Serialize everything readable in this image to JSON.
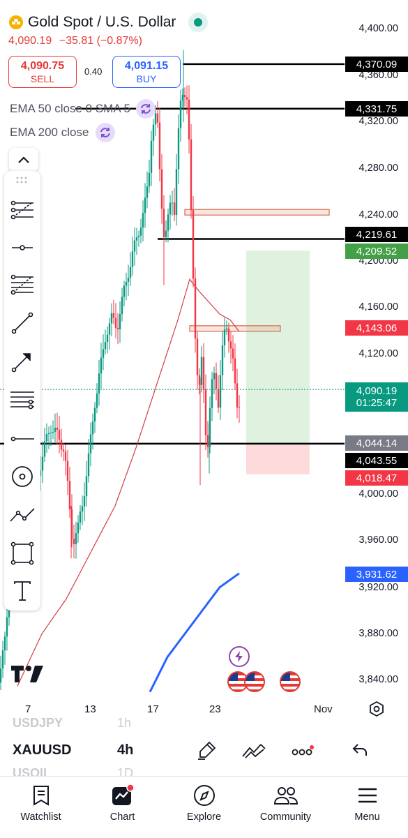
{
  "header": {
    "title": "Gold Spot / U.S. Dollar",
    "last_price": "4,090.19",
    "change": "−35.81",
    "change_pct": "(−0.87%)",
    "sell_price": "4,090.75",
    "sell_label": "SELL",
    "spread": "0.40",
    "buy_price": "4,091.15",
    "buy_label": "BUY"
  },
  "indicators": [
    {
      "label": "EMA 50 close 0 SMA 5"
    },
    {
      "label": "EMA 200 close"
    }
  ],
  "price_axis": {
    "ticks": [
      "4,400.00",
      "4,360.00",
      "4,320.00",
      "4,280.00",
      "4,240.00",
      "4,200.00",
      "4,160.00",
      "4,120.00",
      "4,000.00",
      "3,960.00",
      "3,920.00",
      "3,880.00",
      "3,840.00"
    ]
  },
  "date_axis": {
    "ticks": [
      "7",
      "13",
      "17",
      "23",
      "Nov"
    ]
  },
  "price_labels": {
    "resistance_1": "4,370.09",
    "resistance_2": "4,331.75",
    "resistance_3": "4,219.61",
    "target": "4,209.52",
    "red_level": "4,143.06",
    "current": "4,090.19",
    "countdown": "01:25:47",
    "entry": "4,044.14",
    "support": "4,043.55",
    "stop": "4,018.47",
    "ema200": "3,931.62"
  },
  "chart_data": {
    "type": "candlestick",
    "symbol": "XAUUSD",
    "timeframe": "4h",
    "ylim": [
      3820,
      4410
    ],
    "horizontal_levels": [
      4370.09,
      4331.75,
      4219.61,
      4043.55
    ],
    "position": {
      "entry": 4044.14,
      "target": 4209.52,
      "stop": 4018.47
    },
    "zones": [
      [
        4238,
        4245
      ],
      [
        4138,
        4145
      ]
    ],
    "colors": {
      "up": "#089981",
      "down": "#f23645",
      "ema50": "#d43b45",
      "ema200": "#2962ff"
    }
  },
  "symbol_bar": {
    "prev_symbol": "USDJPY",
    "prev_tf": "1h",
    "symbol": "XAUUSD",
    "timeframe": "4h",
    "next_symbol": "USOIL",
    "next_tf": "1D"
  },
  "nav": {
    "items": [
      {
        "label": "Watchlist",
        "icon": "watchlist-icon"
      },
      {
        "label": "Chart",
        "icon": "chart-icon"
      },
      {
        "label": "Explore",
        "icon": "compass-icon"
      },
      {
        "label": "Community",
        "icon": "community-icon"
      },
      {
        "label": "Menu",
        "icon": "menu-icon"
      }
    ]
  }
}
